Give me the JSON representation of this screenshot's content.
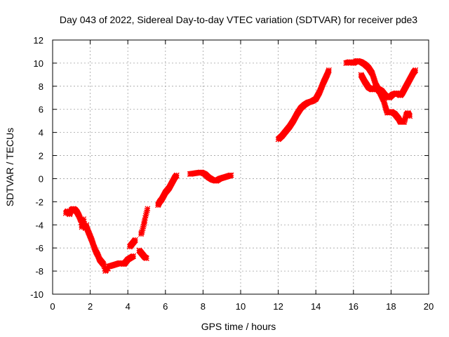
{
  "chart_data": {
    "type": "scatter",
    "title": "Day 043 of 2022, Sidereal Day-to-day VTEC variation (SDTVAR) for receiver pde3",
    "xlabel": "GPS time / hours",
    "ylabel": "SDTVAR / TECUs",
    "xlim": [
      0,
      20
    ],
    "ylim": [
      -10,
      12
    ],
    "xticks": [
      0,
      2,
      4,
      6,
      8,
      10,
      12,
      14,
      16,
      18,
      20
    ],
    "yticks": [
      -10,
      -8,
      -6,
      -4,
      -2,
      0,
      2,
      4,
      6,
      8,
      10,
      12
    ],
    "grid": true,
    "legend": "none",
    "marker_color": "#ff0000",
    "series": [
      {
        "segments": [
          [
            [
              0.7,
              -3.0
            ],
            [
              0.8,
              -2.8
            ],
            [
              0.9,
              -3.1
            ],
            [
              1.0,
              -2.7
            ],
            [
              1.1,
              -2.6
            ],
            [
              1.2,
              -2.7
            ],
            [
              1.3,
              -2.9
            ],
            [
              1.4,
              -3.2
            ],
            [
              1.5,
              -3.6
            ],
            [
              1.55,
              -4.2
            ],
            [
              1.6,
              -3.9
            ],
            [
              1.65,
              -3.5
            ],
            [
              1.7,
              -4.1
            ],
            [
              1.75,
              -4.3
            ],
            [
              1.8,
              -4.0
            ]
          ],
          [
            [
              1.8,
              -4.2
            ],
            [
              1.9,
              -4.6
            ],
            [
              2.0,
              -5.0
            ],
            [
              2.1,
              -5.4
            ],
            [
              2.2,
              -5.9
            ],
            [
              2.3,
              -6.3
            ],
            [
              2.4,
              -6.6
            ],
            [
              2.5,
              -7.0
            ],
            [
              2.6,
              -7.2
            ],
            [
              2.7,
              -7.4
            ],
            [
              2.75,
              -7.6
            ],
            [
              2.8,
              -8.0
            ],
            [
              2.85,
              -7.9
            ],
            [
              2.9,
              -7.7
            ],
            [
              2.95,
              -7.8
            ]
          ],
          [
            [
              3.0,
              -7.6
            ],
            [
              3.2,
              -7.5
            ],
            [
              3.4,
              -7.4
            ],
            [
              3.6,
              -7.3
            ],
            [
              3.8,
              -7.4
            ],
            [
              3.9,
              -7.2
            ],
            [
              4.0,
              -7.0
            ],
            [
              4.1,
              -6.9
            ],
            [
              4.2,
              -6.8
            ],
            [
              4.3,
              -6.7
            ]
          ],
          [
            [
              4.6,
              -6.2
            ],
            [
              4.7,
              -6.4
            ],
            [
              4.8,
              -6.6
            ],
            [
              4.9,
              -6.8
            ],
            [
              5.0,
              -6.9
            ]
          ],
          [
            [
              4.1,
              -5.9
            ],
            [
              4.2,
              -5.7
            ],
            [
              4.3,
              -5.5
            ],
            [
              4.4,
              -5.3
            ]
          ],
          [
            [
              4.7,
              -4.8
            ],
            [
              4.75,
              -4.6
            ],
            [
              4.8,
              -4.3
            ],
            [
              4.85,
              -4.0
            ],
            [
              4.9,
              -3.6
            ],
            [
              4.95,
              -3.2
            ],
            [
              5.0,
              -2.9
            ],
            [
              5.05,
              -2.6
            ]
          ],
          [
            [
              5.6,
              -2.3
            ],
            [
              5.7,
              -2.0
            ],
            [
              5.8,
              -1.8
            ],
            [
              5.9,
              -1.5
            ],
            [
              6.0,
              -1.2
            ],
            [
              6.1,
              -1.0
            ],
            [
              6.2,
              -0.8
            ],
            [
              6.3,
              -0.5
            ],
            [
              6.4,
              -0.2
            ],
            [
              6.5,
              0.1
            ],
            [
              6.6,
              0.3
            ]
          ],
          [
            [
              7.3,
              0.4
            ],
            [
              7.5,
              0.45
            ],
            [
              7.7,
              0.5
            ],
            [
              7.9,
              0.55
            ],
            [
              8.1,
              0.4
            ],
            [
              8.3,
              0.1
            ],
            [
              8.5,
              -0.1
            ],
            [
              8.7,
              -0.2
            ],
            [
              8.9,
              0.0
            ],
            [
              9.1,
              0.1
            ],
            [
              9.3,
              0.2
            ],
            [
              9.5,
              0.3
            ]
          ],
          [
            [
              12.0,
              3.4
            ],
            [
              12.2,
              3.7
            ],
            [
              12.4,
              4.1
            ],
            [
              12.6,
              4.5
            ],
            [
              12.8,
              5.0
            ],
            [
              13.0,
              5.6
            ],
            [
              13.2,
              6.1
            ],
            [
              13.4,
              6.4
            ],
            [
              13.6,
              6.6
            ],
            [
              13.8,
              6.7
            ],
            [
              14.0,
              6.9
            ],
            [
              14.2,
              7.5
            ],
            [
              14.4,
              8.3
            ],
            [
              14.6,
              9.0
            ],
            [
              14.7,
              9.4
            ]
          ],
          [
            [
              15.6,
              10.0
            ],
            [
              15.8,
              10.1
            ],
            [
              16.0,
              10.0
            ],
            [
              16.2,
              10.2
            ],
            [
              16.4,
              10.1
            ],
            [
              16.6,
              9.9
            ],
            [
              16.8,
              9.6
            ],
            [
              17.0,
              9.1
            ],
            [
              17.1,
              8.6
            ],
            [
              17.2,
              8.1
            ],
            [
              17.3,
              7.8
            ],
            [
              17.5,
              7.6
            ],
            [
              17.7,
              7.2
            ],
            [
              17.9,
              7.0
            ],
            [
              18.1,
              7.3
            ],
            [
              18.3,
              7.4
            ],
            [
              18.5,
              7.2
            ],
            [
              18.6,
              7.4
            ],
            [
              18.8,
              8.0
            ],
            [
              19.0,
              8.6
            ],
            [
              19.2,
              9.2
            ],
            [
              19.3,
              9.4
            ]
          ],
          [
            [
              16.4,
              9.0
            ],
            [
              16.6,
              8.4
            ],
            [
              16.8,
              7.9
            ],
            [
              17.0,
              7.7
            ],
            [
              17.2,
              7.9
            ],
            [
              17.4,
              7.5
            ],
            [
              17.6,
              6.8
            ],
            [
              17.7,
              6.2
            ],
            [
              17.8,
              5.7
            ],
            [
              18.0,
              5.8
            ],
            [
              18.2,
              5.6
            ],
            [
              18.4,
              5.2
            ],
            [
              18.5,
              4.9
            ],
            [
              18.7,
              4.9
            ],
            [
              18.8,
              5.5
            ],
            [
              18.9,
              5.7
            ],
            [
              19.0,
              5.4
            ]
          ]
        ]
      }
    ]
  }
}
